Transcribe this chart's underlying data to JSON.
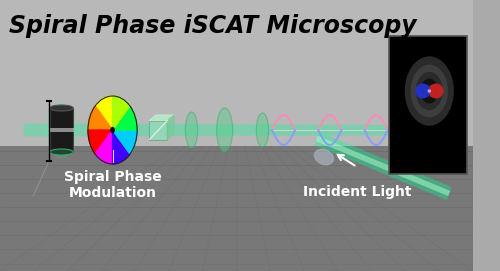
{
  "title": "Spiral Phase iSCAT Microscopy",
  "title_fontsize": 17,
  "title_color": "black",
  "title_fontweight": "bold",
  "title_fontstyle": "italic",
  "label_spiral": "Spiral Phase\nModulation",
  "label_light": "Incident Light",
  "label_color": "white",
  "label_fontsize": 10,
  "bg_wall_color": "#b8b8b8",
  "bg_floor_color": "#787878",
  "floor_grid_color": "#606060",
  "beam_color": "#00ff99",
  "beam_alpha": 0.3,
  "wheel_colors": [
    "#ffff00",
    "#ff8800",
    "#ff0000",
    "#ff00ff",
    "#4400ff",
    "#00ccff",
    "#00ff44",
    "#aaff00"
  ],
  "lens_color": "#55cc88",
  "lens_edge_color": "#33aa66",
  "cube_color": "#99ddbb",
  "helix_color1": "#ff88bb",
  "helix_color2": "#8899ff",
  "psf_bg": "black",
  "psf_red": "#cc2222",
  "psf_blue": "#2233cc",
  "arrow_color": "white",
  "obj_color": "#1a1a1a",
  "scope_glow": "#44ff99"
}
